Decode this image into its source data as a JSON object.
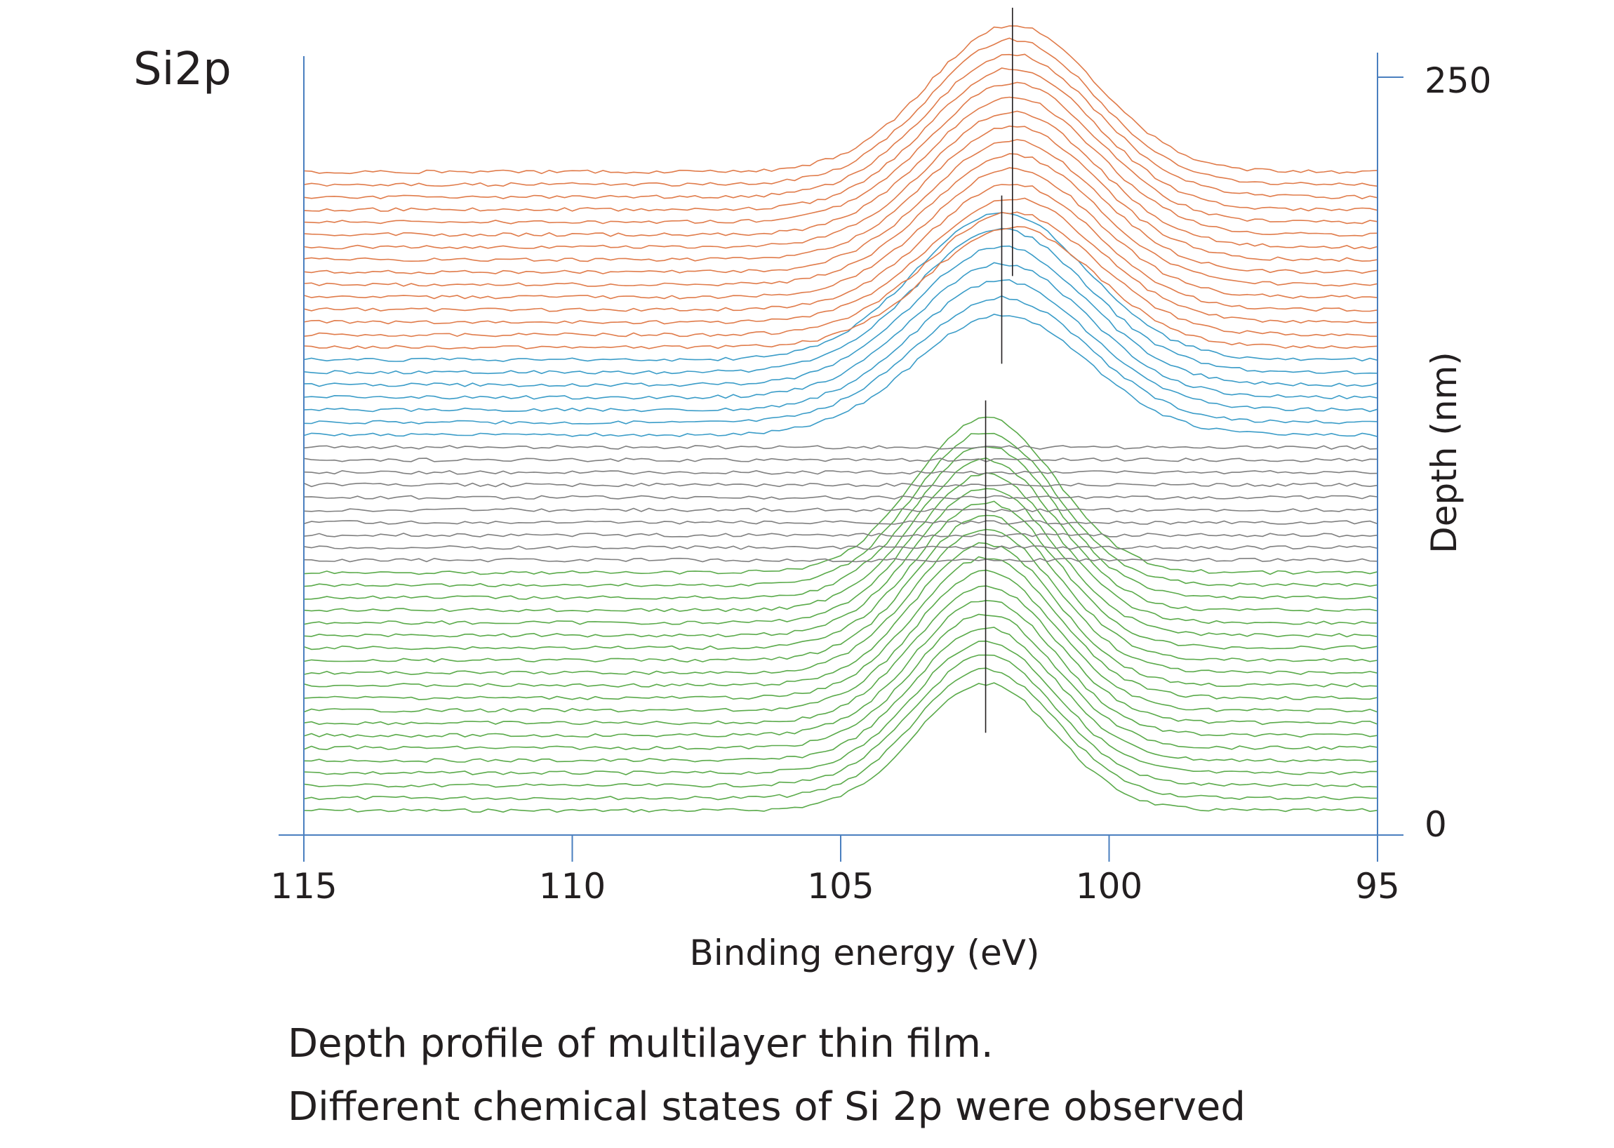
{
  "chart_data": {
    "type": "line",
    "title": "Si2p",
    "xlabel": "Binding energy (eV)",
    "ylabel": "Depth (nm)",
    "xlim": [
      115,
      95
    ],
    "ylim": [
      0,
      250
    ],
    "x_ticks": [
      115,
      110,
      105,
      100,
      95
    ],
    "y_ticks": [
      0,
      250
    ],
    "reversed_x": true,
    "layers": [
      {
        "color": "#e07b4a",
        "count": 15,
        "peak_energy": 101.8,
        "peak_height": 0.55,
        "peak_width": 1.55,
        "marker_energy": 101.8
      },
      {
        "color": "#3a9cc8",
        "count": 7,
        "peak_energy": 102.0,
        "peak_height": 0.55,
        "peak_width": 1.6,
        "marker_energy": 102.0
      },
      {
        "color": "#7f7f7f",
        "count": 10,
        "peak_energy": 102.3,
        "peak_height": 0.0,
        "peak_width": 1.3,
        "marker_energy": null
      },
      {
        "color": "#5aaa4a",
        "count": 20,
        "peak_energy": 102.3,
        "peak_height": 0.58,
        "peak_width": 1.3,
        "marker_energy": 102.3
      }
    ]
  },
  "caption": {
    "line1": "Depth profile of multilayer thin film.",
    "line2": "Different chemical states of Si 2p were observed"
  },
  "colors": {
    "axis": "#4a7fbf",
    "marker": "#231f20",
    "text": "#231f20"
  }
}
